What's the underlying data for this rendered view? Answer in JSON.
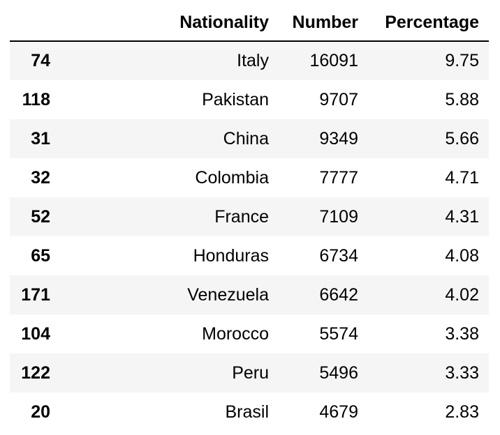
{
  "table": {
    "index_header": "",
    "columns": [
      "Nationality",
      "Number",
      "Percentage"
    ],
    "rows": [
      {
        "index": "74",
        "nationality": "Italy",
        "number": "16091",
        "percentage": "9.75"
      },
      {
        "index": "118",
        "nationality": "Pakistan",
        "number": "9707",
        "percentage": "5.88"
      },
      {
        "index": "31",
        "nationality": "China",
        "number": "9349",
        "percentage": "5.66"
      },
      {
        "index": "32",
        "nationality": "Colombia",
        "number": "7777",
        "percentage": "4.71"
      },
      {
        "index": "52",
        "nationality": "France",
        "number": "7109",
        "percentage": "4.31"
      },
      {
        "index": "65",
        "nationality": "Honduras",
        "number": "6734",
        "percentage": "4.08"
      },
      {
        "index": "171",
        "nationality": "Venezuela",
        "number": "6642",
        "percentage": "4.02"
      },
      {
        "index": "104",
        "nationality": "Morocco",
        "number": "5574",
        "percentage": "3.38"
      },
      {
        "index": "122",
        "nationality": "Peru",
        "number": "5496",
        "percentage": "3.33"
      },
      {
        "index": "20",
        "nationality": "Brasil",
        "number": "4679",
        "percentage": "2.83"
      }
    ]
  },
  "colors": {
    "stripe": "#f5f5f5",
    "background": "#ffffff",
    "text": "#000000"
  }
}
